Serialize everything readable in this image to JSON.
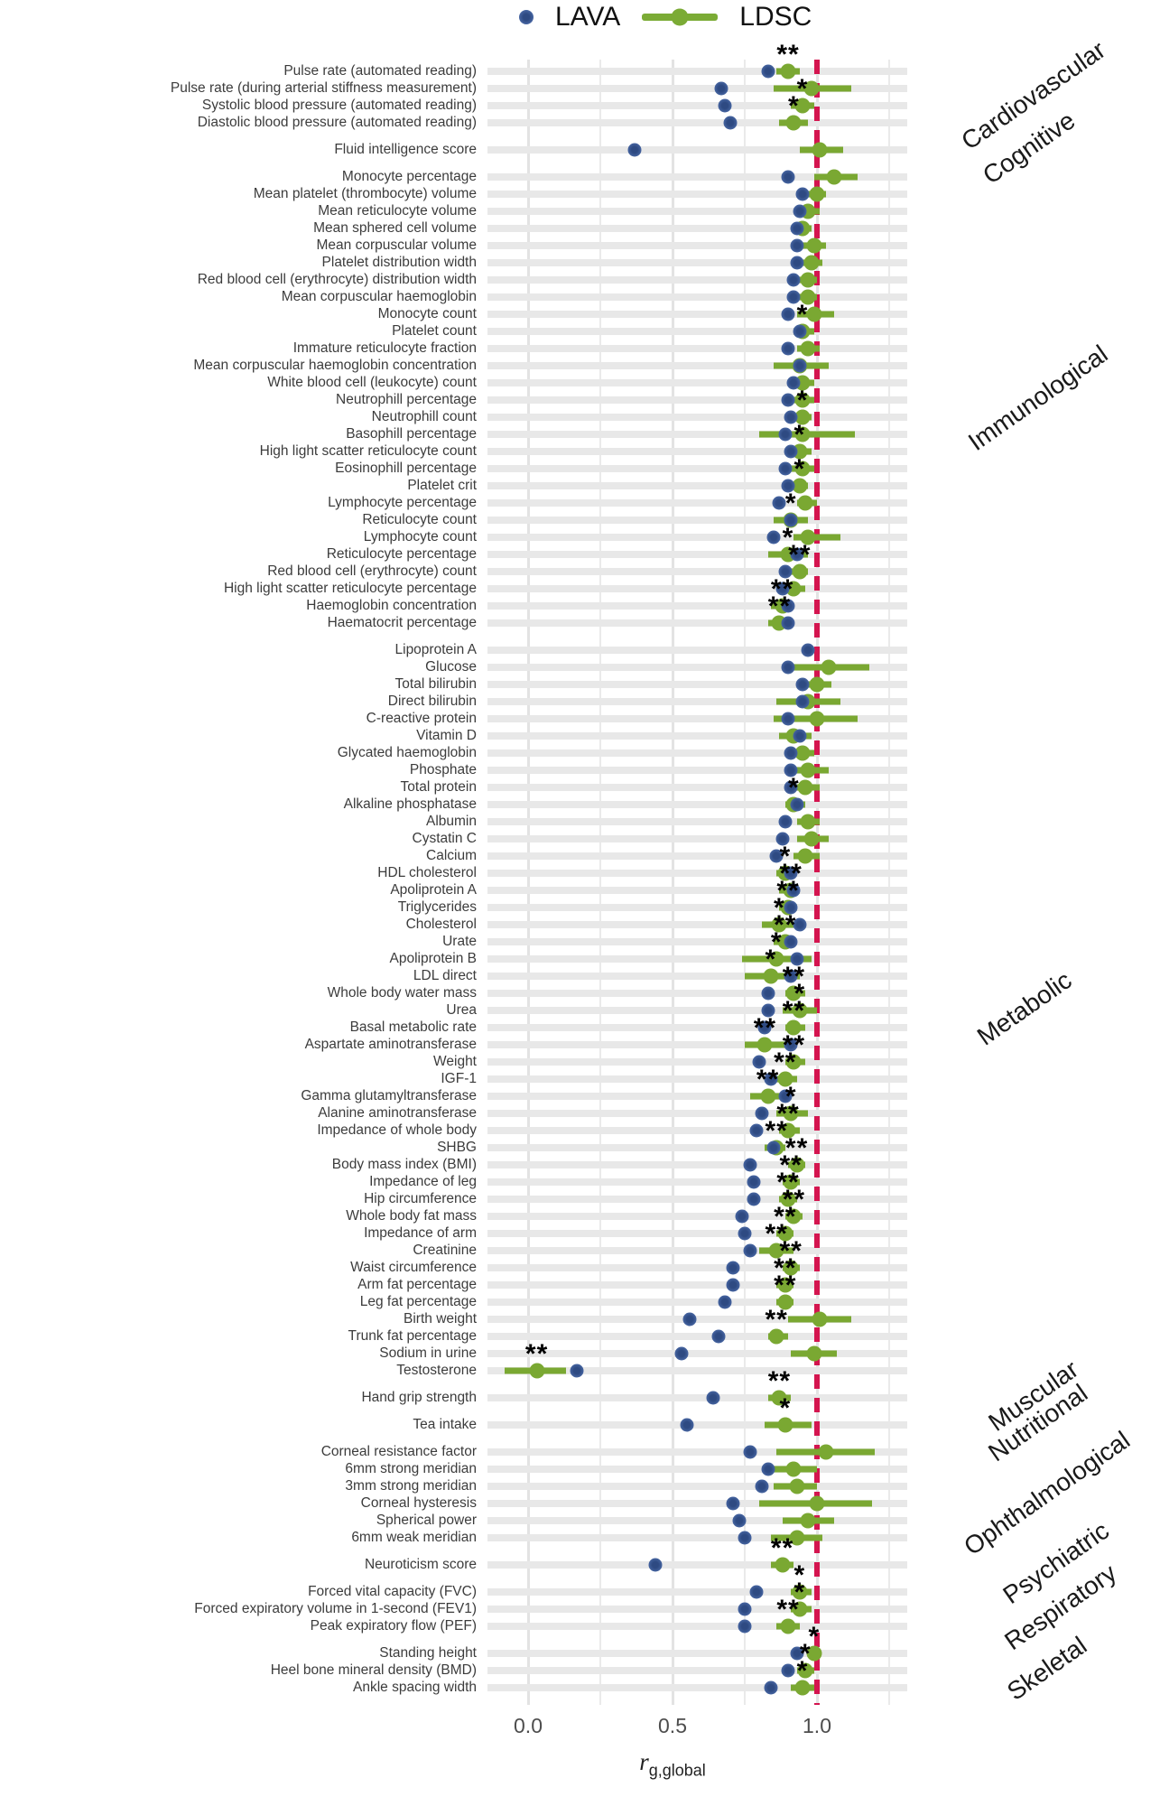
{
  "legend": {
    "lava_label": "LAVA",
    "ldsc_label": "LDSC"
  },
  "axis": {
    "tick_labels": [
      "0.0",
      "0.5",
      "1.0"
    ],
    "tick_values": [
      0.0,
      0.5,
      1.0
    ],
    "title_r": "r",
    "title_sub": "g,global",
    "ref_line": 1.0,
    "xmin": -0.15,
    "xmax": 1.3
  },
  "colors": {
    "lava_blue": "#4A69A6",
    "lava_blue_core": "#2E4A82",
    "ldsc_green": "#7AA832",
    "ref_red": "#D4154F",
    "stripe_gray": "#E8E8E8",
    "grid_gray": "#E9E9E9",
    "label_gray": "#3C3C3C"
  },
  "chart_data": {
    "type": "scatter",
    "xlabel": "r g,global",
    "series_names": [
      "LAVA",
      "LDSC"
    ],
    "columns": [
      "label",
      "lava",
      "ldsc",
      "ci_low",
      "ci_high",
      "sig"
    ],
    "groups": [
      {
        "name": "Cardiovascular",
        "rows": [
          [
            "Pulse rate (automated reading)",
            0.83,
            0.9,
            0.86,
            0.94,
            "**"
          ],
          [
            "Pulse rate (during arterial stiffness measurement)",
            0.67,
            0.98,
            0.85,
            1.12,
            ""
          ],
          [
            "Systolic blood pressure (automated reading)",
            0.68,
            0.95,
            0.91,
            0.99,
            "*"
          ],
          [
            "Diastolic blood pressure (automated reading)",
            0.7,
            0.92,
            0.87,
            0.97,
            "*"
          ]
        ]
      },
      {
        "name": "Cognitive",
        "rows": [
          [
            "Fluid intelligence score",
            0.37,
            1.01,
            0.94,
            1.09,
            ""
          ]
        ]
      },
      {
        "name": "Immunological",
        "rows": [
          [
            "Monocyte percentage",
            0.9,
            1.06,
            0.99,
            1.14,
            ""
          ],
          [
            "Mean platelet (thrombocyte) volume",
            0.95,
            1.0,
            0.97,
            1.03,
            ""
          ],
          [
            "Mean reticulocyte volume",
            0.94,
            0.97,
            0.94,
            1.01,
            ""
          ],
          [
            "Mean sphered cell volume",
            0.93,
            0.95,
            0.92,
            0.98,
            ""
          ],
          [
            "Mean corpuscular volume",
            0.93,
            0.99,
            0.95,
            1.03,
            ""
          ],
          [
            "Platelet distribution width",
            0.93,
            0.98,
            0.95,
            1.02,
            ""
          ],
          [
            "Red blood cell (erythrocyte) distribution width",
            0.92,
            0.97,
            0.93,
            1.0,
            ""
          ],
          [
            "Mean corpuscular haemoglobin",
            0.92,
            0.97,
            0.93,
            1.0,
            ""
          ],
          [
            "Monocyte count",
            0.9,
            0.99,
            0.93,
            1.06,
            ""
          ],
          [
            "Platelet count",
            0.94,
            0.95,
            0.92,
            0.99,
            "*"
          ],
          [
            "Immature reticulocyte fraction",
            0.9,
            0.97,
            0.93,
            1.01,
            ""
          ],
          [
            "Mean corpuscular haemoglobin concentration",
            0.94,
            0.94,
            0.85,
            1.04,
            ""
          ],
          [
            "White blood cell (leukocyte) count",
            0.92,
            0.95,
            0.92,
            0.99,
            ""
          ],
          [
            "Neutrophill percentage",
            0.9,
            0.95,
            0.91,
            0.99,
            ""
          ],
          [
            "Neutrophill count",
            0.91,
            0.95,
            0.91,
            0.98,
            "*"
          ],
          [
            "Basophill percentage",
            0.89,
            0.95,
            0.8,
            1.13,
            ""
          ],
          [
            "High light scatter reticulocyte count",
            0.91,
            0.94,
            0.9,
            0.98,
            "*"
          ],
          [
            "Eosinophill percentage",
            0.89,
            0.95,
            0.91,
            0.99,
            ""
          ],
          [
            "Platelet crit",
            0.9,
            0.94,
            0.91,
            0.97,
            "*"
          ],
          [
            "Lymphocyte percentage",
            0.87,
            0.96,
            0.93,
            1.0,
            ""
          ],
          [
            "Reticulocyte count",
            0.91,
            0.91,
            0.85,
            0.97,
            "*"
          ],
          [
            "Lymphocyte count",
            0.85,
            0.97,
            0.92,
            1.08,
            ""
          ],
          [
            "Reticulocyte percentage",
            0.93,
            0.9,
            0.83,
            0.97,
            "*"
          ],
          [
            "Red blood cell (erythrocyte) count",
            0.89,
            0.94,
            0.9,
            0.97,
            "**"
          ],
          [
            "High light scatter reticulocyte percentage",
            0.88,
            0.92,
            0.89,
            0.96,
            ""
          ],
          [
            "Haemoglobin concentration",
            0.9,
            0.88,
            0.84,
            0.92,
            "**"
          ],
          [
            "Haematocrit percentage",
            0.9,
            0.87,
            0.83,
            0.91,
            "**"
          ]
        ]
      },
      {
        "name": "Metabolic",
        "rows": [
          [
            "Lipoprotein A",
            0.97,
            null,
            null,
            null,
            ""
          ],
          [
            "Glucose",
            0.9,
            1.04,
            0.9,
            1.18,
            ""
          ],
          [
            "Total bilirubin",
            0.95,
            1.0,
            0.95,
            1.05,
            ""
          ],
          [
            "Direct bilirubin",
            0.95,
            0.97,
            0.86,
            1.08,
            ""
          ],
          [
            "C-reactive protein",
            0.9,
            1.0,
            0.85,
            1.14,
            ""
          ],
          [
            "Vitamin D",
            0.94,
            0.92,
            0.87,
            0.98,
            ""
          ],
          [
            "Glycated haemoglobin",
            0.91,
            0.95,
            0.91,
            0.99,
            ""
          ],
          [
            "Phosphate",
            0.91,
            0.97,
            0.91,
            1.04,
            ""
          ],
          [
            "Total protein",
            0.91,
            0.96,
            0.92,
            1.01,
            ""
          ],
          [
            "Alkaline phosphatase",
            0.93,
            0.92,
            0.89,
            0.96,
            "*"
          ],
          [
            "Albumin",
            0.89,
            0.97,
            0.93,
            1.01,
            ""
          ],
          [
            "Cystatin C",
            0.88,
            0.98,
            0.93,
            1.04,
            ""
          ],
          [
            "Calcium",
            0.86,
            0.96,
            0.92,
            1.01,
            ""
          ],
          [
            "HDL cholesterol",
            0.91,
            0.89,
            0.86,
            0.92,
            "*"
          ],
          [
            "Apoliprotein A",
            0.92,
            0.91,
            0.87,
            0.94,
            "**"
          ],
          [
            "Triglycerides",
            0.91,
            0.9,
            0.87,
            0.93,
            "**"
          ],
          [
            "Cholesterol",
            0.94,
            0.87,
            0.81,
            0.94,
            "*"
          ],
          [
            "Urate",
            0.91,
            0.89,
            0.85,
            0.92,
            "**"
          ],
          [
            "Apoliprotein B",
            0.93,
            0.86,
            0.74,
            0.98,
            "*"
          ],
          [
            "LDL direct",
            0.91,
            0.84,
            0.75,
            0.94,
            "*"
          ],
          [
            "Whole body water mass",
            0.83,
            0.92,
            0.89,
            0.96,
            "**"
          ],
          [
            "Urea",
            0.83,
            0.94,
            0.88,
            1.0,
            "*"
          ],
          [
            "Basal metabolic rate",
            0.82,
            0.92,
            0.89,
            0.96,
            "**"
          ],
          [
            "Aspartate aminotransferase",
            0.91,
            0.82,
            0.75,
            0.9,
            "**"
          ],
          [
            "Weight",
            0.8,
            0.92,
            0.89,
            0.96,
            "**"
          ],
          [
            "IGF-1",
            0.84,
            0.89,
            0.85,
            0.93,
            "**"
          ],
          [
            "Gamma glutamyltransferase",
            0.89,
            0.83,
            0.77,
            0.9,
            "**"
          ],
          [
            "Alanine aminotransferase",
            0.81,
            0.91,
            0.86,
            0.97,
            "*"
          ],
          [
            "Impedance of whole body",
            0.79,
            0.9,
            0.87,
            0.94,
            "**"
          ],
          [
            "SHBG",
            0.85,
            0.86,
            0.82,
            0.89,
            "**"
          ],
          [
            "Body mass index (BMI)",
            0.77,
            0.93,
            0.9,
            0.96,
            "**"
          ],
          [
            "Impedance of leg",
            0.78,
            0.91,
            0.88,
            0.94,
            "**"
          ],
          [
            "Hip circumference",
            0.78,
            0.9,
            0.87,
            0.93,
            "**"
          ],
          [
            "Whole body fat mass",
            0.74,
            0.92,
            0.89,
            0.95,
            "**"
          ],
          [
            "Impedance of arm",
            0.75,
            0.89,
            0.86,
            0.92,
            "**"
          ],
          [
            "Creatinine",
            0.77,
            0.86,
            0.8,
            0.92,
            "**"
          ],
          [
            "Waist circumference",
            0.71,
            0.91,
            0.88,
            0.94,
            "**"
          ],
          [
            "Arm fat percentage",
            0.71,
            0.89,
            0.86,
            0.92,
            "**"
          ],
          [
            "Leg fat percentage",
            0.68,
            0.89,
            0.86,
            0.92,
            "**"
          ],
          [
            "Birth weight",
            0.56,
            1.01,
            0.9,
            1.12,
            ""
          ],
          [
            "Trunk fat percentage",
            0.66,
            0.86,
            0.83,
            0.9,
            "**"
          ],
          [
            "Sodium in urine",
            0.53,
            0.99,
            0.91,
            1.07,
            ""
          ],
          [
            "Testosterone",
            0.17,
            0.03,
            -0.08,
            0.13,
            "**"
          ]
        ]
      },
      {
        "name": "Muscular",
        "rows": [
          [
            "Hand grip strength",
            0.64,
            0.87,
            0.83,
            0.91,
            "**"
          ]
        ]
      },
      {
        "name": "Nutritional",
        "rows": [
          [
            "Tea intake",
            0.55,
            0.89,
            0.82,
            0.98,
            "*"
          ]
        ]
      },
      {
        "name": "Ophthalmological",
        "rows": [
          [
            "Corneal resistance factor",
            0.77,
            1.03,
            0.86,
            1.2,
            ""
          ],
          [
            "6mm strong meridian",
            0.83,
            0.92,
            0.84,
            1.0,
            ""
          ],
          [
            "3mm strong meridian",
            0.81,
            0.93,
            0.85,
            1.0,
            ""
          ],
          [
            "Corneal hysteresis",
            0.71,
            1.0,
            0.8,
            1.19,
            ""
          ],
          [
            "Spherical power",
            0.73,
            0.97,
            0.88,
            1.06,
            ""
          ],
          [
            "6mm weak meridian",
            0.75,
            0.93,
            0.84,
            1.02,
            ""
          ]
        ]
      },
      {
        "name": "Psychiatric",
        "rows": [
          [
            "Neuroticism score",
            0.44,
            0.88,
            0.84,
            0.92,
            "**"
          ]
        ]
      },
      {
        "name": "Respiratory",
        "rows": [
          [
            "Forced vital capacity (FVC)",
            0.79,
            0.94,
            0.91,
            0.98,
            "*"
          ],
          [
            "Forced expiratory volume in 1-second (FEV1)",
            0.75,
            0.94,
            0.91,
            0.98,
            "*"
          ],
          [
            "Peak expiratory flow (PEF)",
            0.75,
            0.9,
            0.86,
            0.94,
            "**"
          ]
        ]
      },
      {
        "name": "Skeletal",
        "rows": [
          [
            "Standing height",
            0.93,
            0.99,
            0.97,
            1.01,
            "*"
          ],
          [
            "Heel bone mineral density (BMD)",
            0.9,
            0.96,
            0.93,
            0.99,
            "*"
          ],
          [
            "Ankle spacing width",
            0.84,
            0.95,
            0.91,
            0.99,
            "*"
          ]
        ]
      }
    ]
  }
}
